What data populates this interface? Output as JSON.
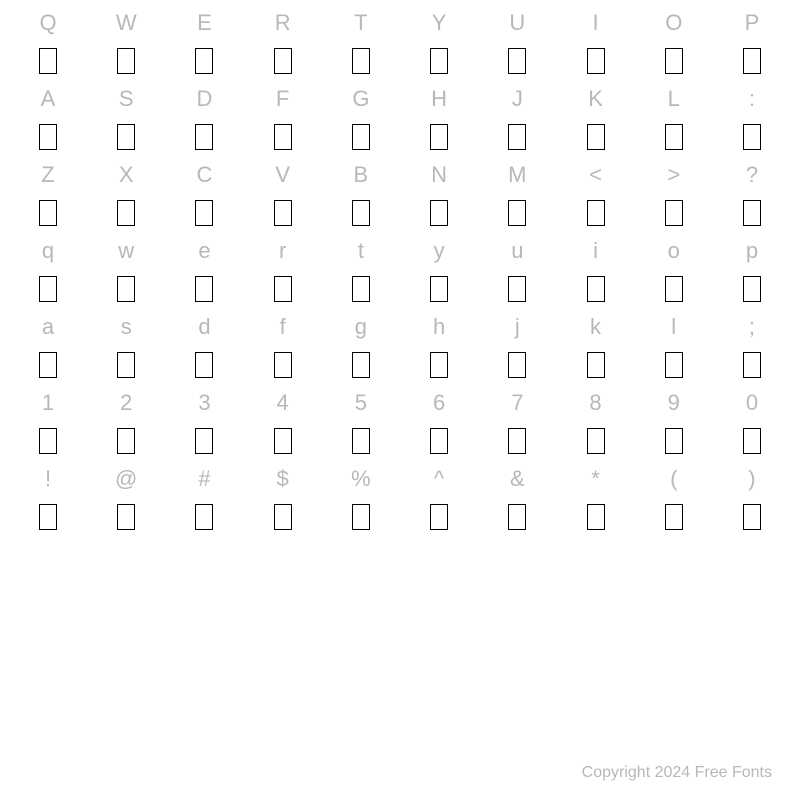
{
  "rows": [
    [
      "Q",
      "W",
      "E",
      "R",
      "T",
      "Y",
      "U",
      "I",
      "O",
      "P"
    ],
    [
      "A",
      "S",
      "D",
      "F",
      "G",
      "H",
      "J",
      "K",
      "L",
      ":"
    ],
    [
      "Z",
      "X",
      "C",
      "V",
      "B",
      "N",
      "M",
      "<",
      ">",
      "?"
    ],
    [
      "q",
      "w",
      "e",
      "r",
      "t",
      "y",
      "u",
      "i",
      "o",
      "p"
    ],
    [
      "a",
      "s",
      "d",
      "f",
      "g",
      "h",
      "j",
      "k",
      "l",
      ";"
    ],
    [
      "1",
      "2",
      "3",
      "4",
      "5",
      "6",
      "7",
      "8",
      "9",
      "0"
    ],
    [
      "!",
      "@",
      "#",
      "$",
      "%",
      "^",
      "&",
      "*",
      "(",
      ")"
    ]
  ],
  "copyright": "Copyright 2024 Free Fonts",
  "style": {
    "background_color": "#ffffff",
    "label_color": "#b8b8b8",
    "label_fontsize": 22,
    "glyph_box_border_color": "#000000",
    "glyph_box_width": 18,
    "glyph_box_height": 26,
    "copyright_color": "#b8b8b8",
    "copyright_fontsize": 16,
    "columns": 10,
    "row_count": 7
  }
}
